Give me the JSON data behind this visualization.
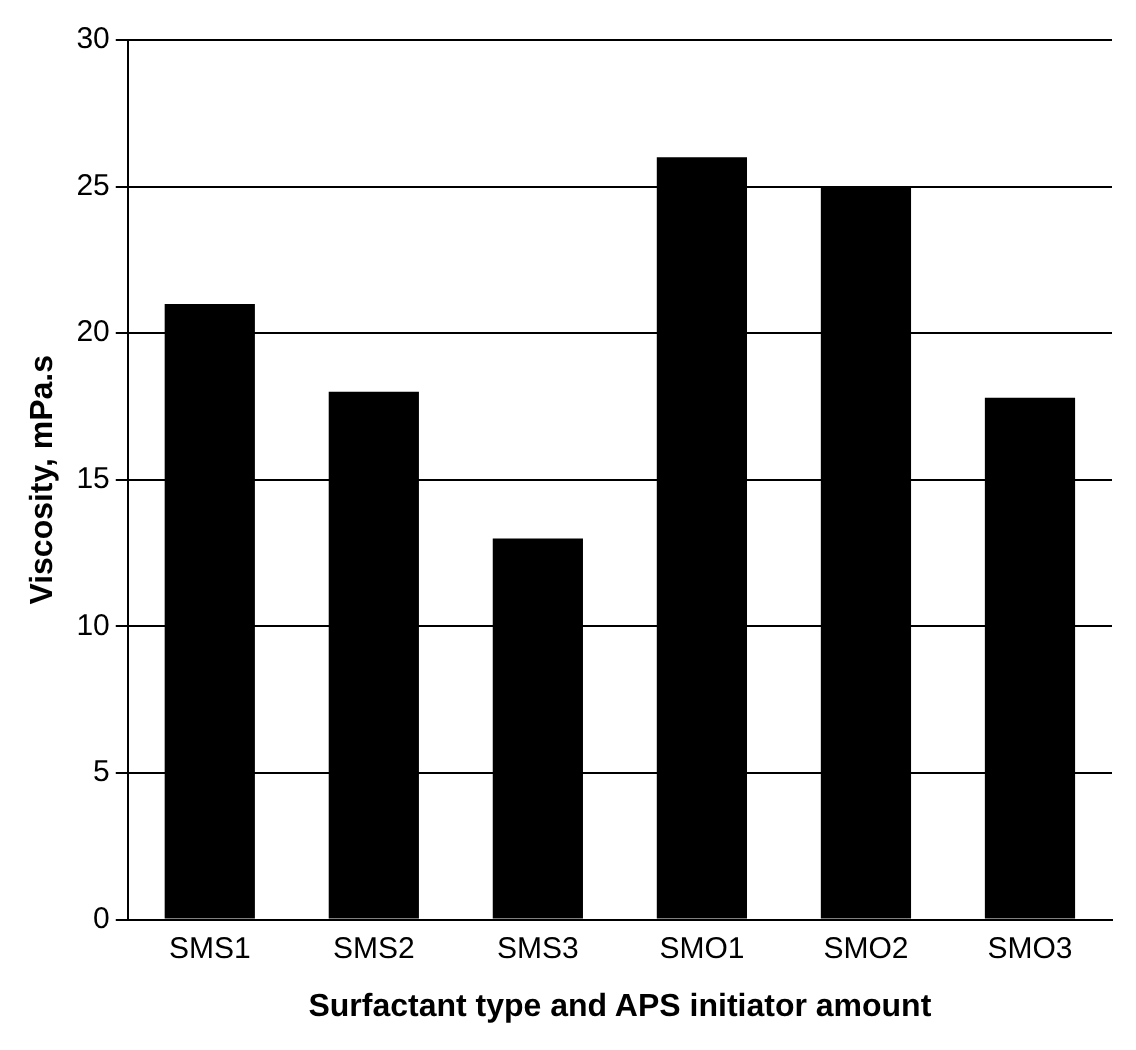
{
  "chart_data": {
    "type": "bar",
    "xlabel": "Surfactant type and APS initiator amount",
    "ylabel": "Viscosity, mPa.s",
    "categories": [
      "SMS1",
      "SMS2",
      "SMS3",
      "SMO1",
      "SMO2",
      "SMO3"
    ],
    "values": [
      21,
      18,
      13,
      26,
      25,
      17.8
    ],
    "color": "#000000",
    "ylim": [
      0,
      30
    ],
    "yticks": [
      0,
      5,
      10,
      15,
      20,
      25,
      30
    ],
    "grid": "y",
    "legend": false
  }
}
